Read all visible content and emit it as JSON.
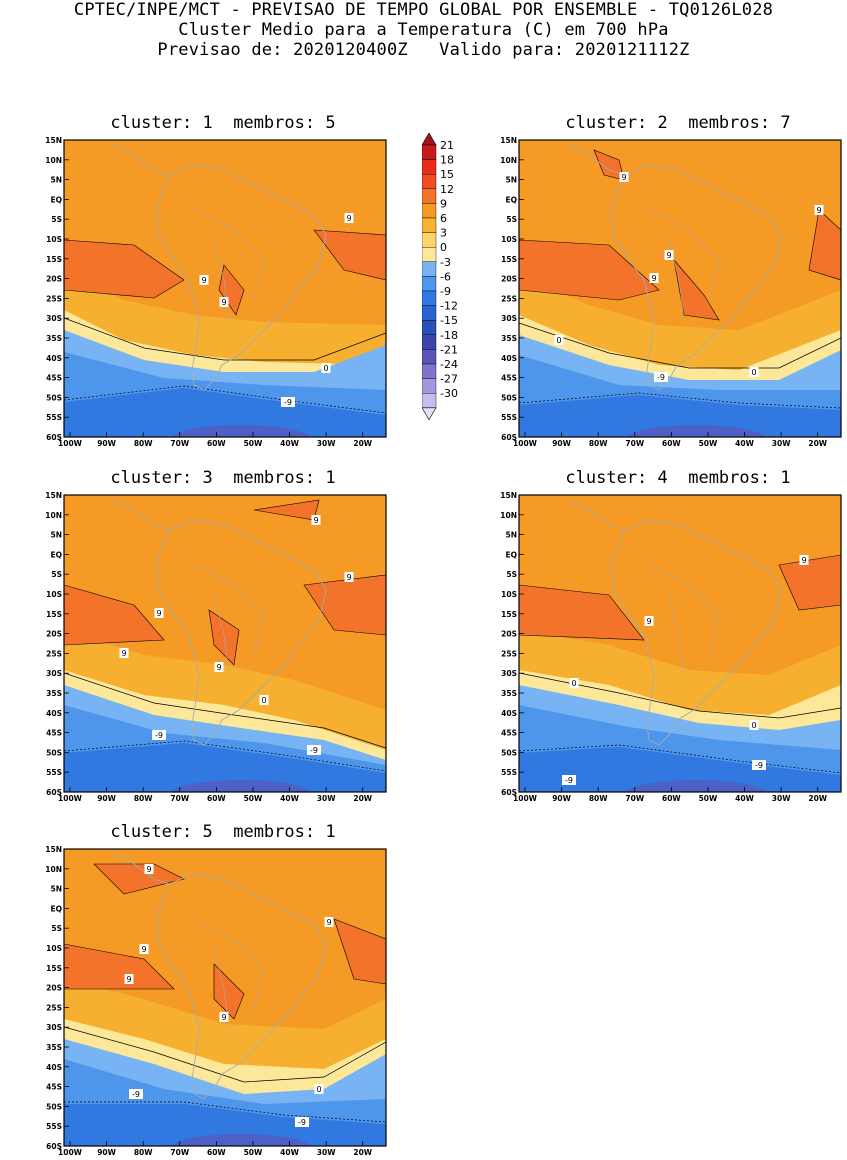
{
  "header": {
    "line1": "CPTEC/INPE/MCT - PREVISAO DE TEMPO GLOBAL POR ENSEMBLE - TQ0126L028",
    "line2": "Cluster Medio para a Temperatura (C) em 700 hPa",
    "line3": "Previsao de: 2020120400Z   Valido para: 2020121112Z"
  },
  "lat_ticks": [
    "15N",
    "10N",
    "5N",
    "EQ",
    "5S",
    "10S",
    "15S",
    "20S",
    "25S",
    "30S",
    "35S",
    "40S",
    "45S",
    "50S",
    "55S",
    "60S"
  ],
  "lon_ticks": [
    "100W",
    "90W",
    "80W",
    "70W",
    "60W",
    "50W",
    "40W",
    "30W",
    "20W"
  ],
  "colorbar": {
    "labels": [
      "21",
      "18",
      "15",
      "12",
      "9",
      "6",
      "3",
      "0",
      "-3",
      "-6",
      "-9",
      "-12",
      "-15",
      "-18",
      "-21",
      "-24",
      "-27",
      "-30"
    ],
    "colors": [
      "#a4141e",
      "#c8191c",
      "#e82d1e",
      "#f04c21",
      "#f3732a",
      "#f59a24",
      "#f7b432",
      "#fbd56a",
      "#fde89a",
      "#78b4f3",
      "#4e95ec",
      "#3178e1",
      "#2a62cf",
      "#2950b4",
      "#3a46a9",
      "#5a55b9",
      "#7f73cc",
      "#a497dd",
      "#c8bdea",
      "#e5dff4"
    ]
  },
  "panels": [
    {
      "title": "cluster: 1  membros: 5",
      "labels": [
        {
          "t": "9"
        },
        {
          "t": "9"
        },
        {
          "t": "9"
        },
        {
          "t": "0"
        },
        {
          "t": "-9"
        }
      ]
    },
    {
      "title": "cluster: 2  membros: 7",
      "labels": [
        {
          "t": "9"
        },
        {
          "t": "9"
        },
        {
          "t": "9"
        },
        {
          "t": "9"
        },
        {
          "t": "0"
        },
        {
          "t": "0"
        },
        {
          "t": "-9"
        }
      ]
    },
    {
      "title": "cluster: 3  membros: 1",
      "labels": [
        {
          "t": "9"
        },
        {
          "t": "9"
        },
        {
          "t": "9"
        },
        {
          "t": "9"
        },
        {
          "t": "9"
        },
        {
          "t": "0"
        },
        {
          "t": "-9"
        },
        {
          "t": "-9"
        }
      ]
    },
    {
      "title": "cluster: 4  membros: 1",
      "labels": [
        {
          "t": "9"
        },
        {
          "t": "9"
        },
        {
          "t": "0"
        },
        {
          "t": "0"
        },
        {
          "t": "-9"
        },
        {
          "t": "-9"
        }
      ]
    },
    {
      "title": "cluster: 5  membros: 1",
      "labels": [
        {
          "t": "9"
        },
        {
          "t": "9"
        },
        {
          "t": "9"
        },
        {
          "t": "9"
        },
        {
          "t": "9"
        },
        {
          "t": "0"
        },
        {
          "t": "-9"
        },
        {
          "t": "-9"
        }
      ]
    }
  ]
}
